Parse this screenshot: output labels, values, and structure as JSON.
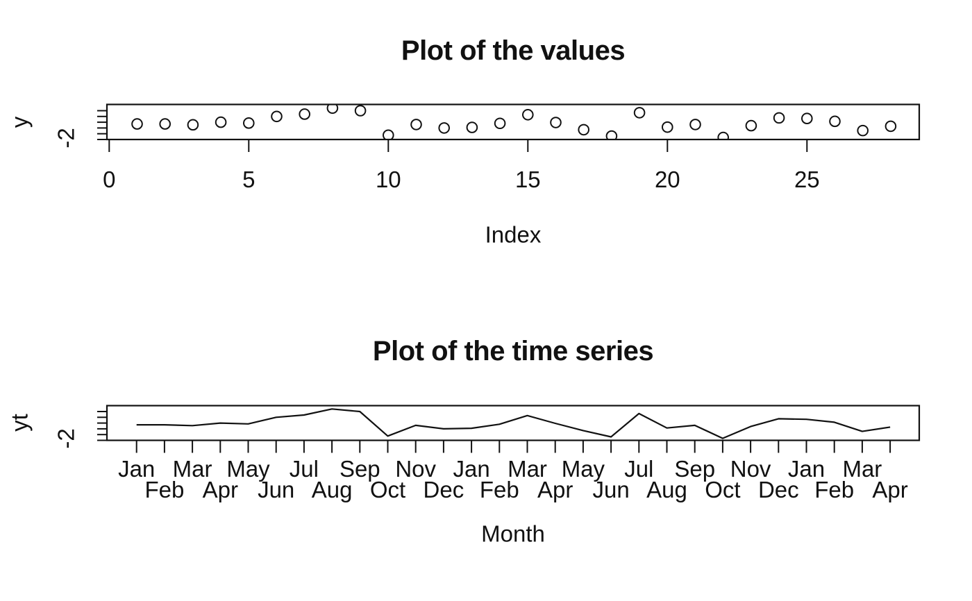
{
  "figure": {
    "background": "#ffffff",
    "foreground": "#111111"
  },
  "chart_data": [
    {
      "type": "scatter",
      "title": "Plot of the values",
      "xlabel": "Index",
      "ylabel": "y",
      "marker": "open-circle",
      "grid": false,
      "x": [
        1,
        2,
        3,
        4,
        5,
        6,
        7,
        8,
        9,
        10,
        11,
        12,
        13,
        14,
        15,
        16,
        17,
        18,
        19,
        20,
        21,
        22,
        23,
        24,
        25,
        26,
        27,
        28
      ],
      "y": [
        -1.46,
        -1.46,
        -1.49,
        -1.4,
        -1.43,
        -1.2,
        -1.12,
        -0.91,
        -1.0,
        -1.85,
        -1.48,
        -1.6,
        -1.58,
        -1.44,
        -1.14,
        -1.41,
        -1.66,
        -1.88,
        -1.07,
        -1.57,
        -1.48,
        -1.93,
        -1.52,
        -1.25,
        -1.27,
        -1.37,
        -1.69,
        -1.54
      ],
      "xtick_values": [
        0,
        5,
        10,
        15,
        20,
        25
      ],
      "xtick_labels": [
        "0",
        "5",
        "10",
        "15",
        "20",
        "25"
      ],
      "ytick_values": [
        -2.0,
        -1.8,
        -1.6,
        -1.4,
        -1.2,
        -1.0
      ],
      "ytick_label_shown": "-2",
      "xlim": [
        -0.08,
        29.1
      ],
      "ylim": [
        -2.0,
        -0.78
      ]
    },
    {
      "type": "line",
      "title": "Plot of the time series",
      "xlabel": "Month",
      "ylabel": "yt",
      "grid": false,
      "x": [
        1,
        2,
        3,
        4,
        5,
        6,
        7,
        8,
        9,
        10,
        11,
        12,
        13,
        14,
        15,
        16,
        17,
        18,
        19,
        20,
        21,
        22,
        23,
        24,
        25,
        26,
        27,
        28
      ],
      "y": [
        -1.46,
        -1.46,
        -1.49,
        -1.4,
        -1.43,
        -1.2,
        -1.12,
        -0.91,
        -1.0,
        -1.85,
        -1.48,
        -1.6,
        -1.58,
        -1.44,
        -1.14,
        -1.41,
        -1.66,
        -1.88,
        -1.07,
        -1.57,
        -1.48,
        -1.93,
        -1.52,
        -1.25,
        -1.27,
        -1.37,
        -1.69,
        -1.54
      ],
      "xtick_labels": [
        "Jan",
        "Feb",
        "Mar",
        "Apr",
        "May",
        "Jun",
        "Jul",
        "Aug",
        "Sep",
        "Oct",
        "Nov",
        "Dec",
        "Jan",
        "Feb",
        "Mar",
        "Apr",
        "May",
        "Jun",
        "Jul",
        "Aug",
        "Sep",
        "Oct",
        "Nov",
        "Dec",
        "Jan",
        "Feb",
        "Mar",
        "Apr"
      ],
      "xtick_label_stagger": "odd-months-row1-even-months-row2",
      "ytick_values": [
        -2.0,
        -1.8,
        -1.6,
        -1.4,
        -1.2,
        -1.0
      ],
      "ytick_label_shown": "-2",
      "xlim": [
        -0.08,
        29.1
      ],
      "ylim": [
        -2.0,
        -0.78
      ]
    }
  ]
}
